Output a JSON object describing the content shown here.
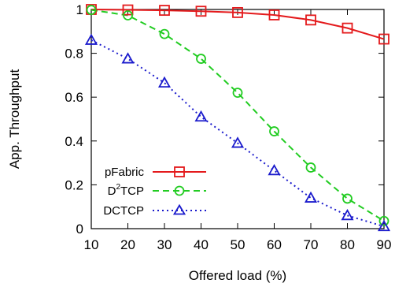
{
  "chart_data": {
    "type": "line",
    "xlabel": "Offered load (%)",
    "ylabel": "App. Throughput",
    "x": [
      10,
      20,
      30,
      40,
      50,
      60,
      70,
      80,
      90
    ],
    "xlim": [
      10,
      90
    ],
    "ylim": [
      0,
      1
    ],
    "xticks": [
      "10",
      "20",
      "30",
      "40",
      "50",
      "60",
      "70",
      "80",
      "90"
    ],
    "yticks": [
      "0",
      "0.2",
      "0.4",
      "0.6",
      "0.8",
      "1"
    ],
    "grid": false,
    "legend_position": "bottom-left",
    "series": [
      {
        "name": "pFabric",
        "color": "#e41a1c",
        "marker": "square",
        "dash": "solid",
        "values": [
          1.0,
          0.998,
          0.996,
          0.992,
          0.986,
          0.975,
          0.952,
          0.915,
          0.865
        ]
      },
      {
        "name": "D²TCP",
        "name_base": "D",
        "name_sup": "2",
        "name_rest": "TCP",
        "color": "#22cc22",
        "marker": "circle",
        "dash": "dashed",
        "values": [
          0.998,
          0.973,
          0.888,
          0.775,
          0.62,
          0.444,
          0.279,
          0.137,
          0.035
        ]
      },
      {
        "name": "DCTCP",
        "color": "#1a1acc",
        "marker": "triangle",
        "dash": "dotted",
        "values": [
          0.86,
          0.775,
          0.665,
          0.51,
          0.39,
          0.265,
          0.14,
          0.06,
          0.01
        ]
      }
    ]
  }
}
